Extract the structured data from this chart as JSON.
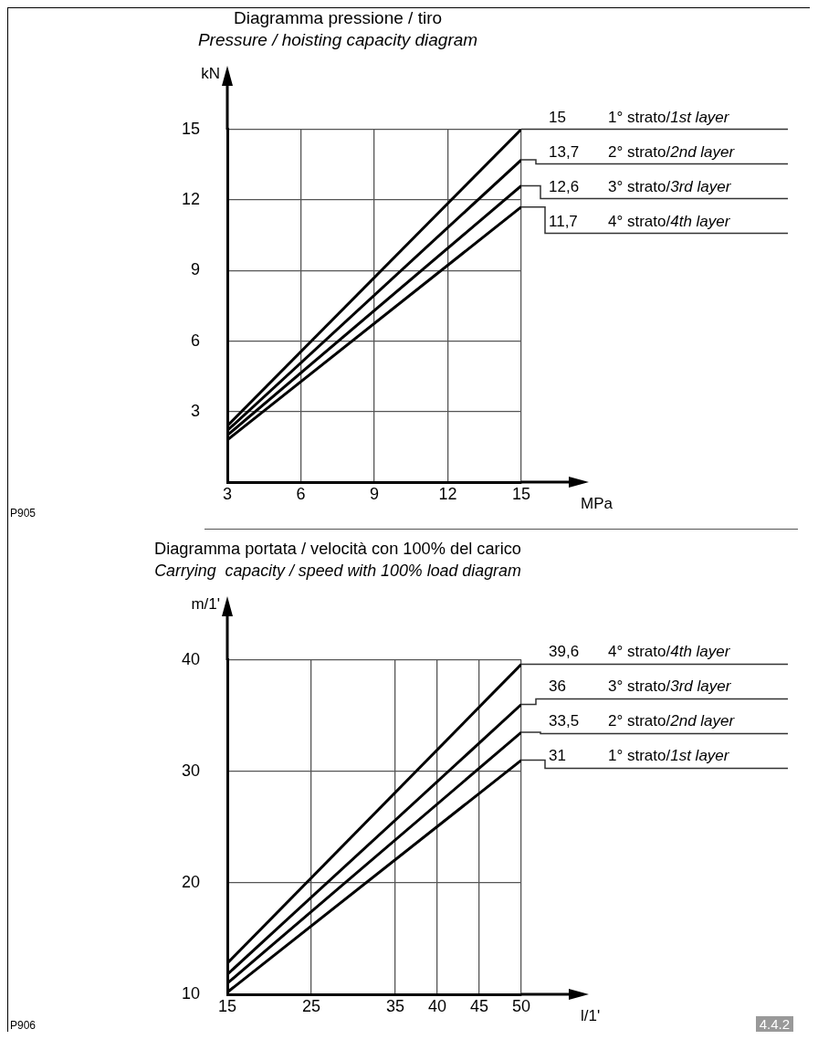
{
  "chart_data": [
    {
      "type": "line",
      "title": "Diagramma pressione / tiro",
      "subtitle": "Pressure / hoisting capacity diagram",
      "xlabel": "MPa",
      "ylabel": "kN",
      "x": [
        3,
        15
      ],
      "xlim": [
        3,
        15
      ],
      "ylim": [
        0,
        15
      ],
      "xticks": [
        3,
        6,
        9,
        12,
        15
      ],
      "yticks": [
        3,
        6,
        9,
        12,
        15
      ],
      "grid": true,
      "annotations": [
        "P905"
      ],
      "series": [
        {
          "name": "1° strato/1st layer",
          "color": "#000000",
          "values": [
            2.4,
            15
          ],
          "value_labels": [
            null,
            "15"
          ]
        },
        {
          "name": "2° strato/2nd layer",
          "color": "#000000",
          "values": [
            2.2,
            13.7
          ],
          "value_labels": [
            null,
            "13,7"
          ]
        },
        {
          "name": "3° strato/3rd layer",
          "color": "#000000",
          "values": [
            2.0,
            12.6
          ],
          "value_labels": [
            null,
            "12,6"
          ]
        },
        {
          "name": "4° strato/4th layer",
          "color": "#000000",
          "values": [
            1.8,
            11.7
          ],
          "value_labels": [
            null,
            "11,7"
          ]
        }
      ]
    },
    {
      "type": "line",
      "title": "Diagramma portata / velocità con 100% del carico",
      "subtitle": "Carrying  capacity / speed with 100% load diagram",
      "xlabel": "l/1'",
      "ylabel": "m/1'",
      "x": [
        15,
        50
      ],
      "xlim": [
        15,
        50
      ],
      "ylim": [
        10,
        40
      ],
      "xticks": [
        15,
        25,
        35,
        40,
        45,
        50
      ],
      "yticks": [
        10,
        20,
        30,
        40
      ],
      "grid": true,
      "annotations": [
        "P906",
        "4.4.2"
      ],
      "series": [
        {
          "name": "4° strato/4th layer",
          "color": "#000000",
          "values": [
            12.8,
            39.6
          ],
          "value_labels": [
            null,
            "39,6"
          ]
        },
        {
          "name": "3° strato/3rd layer",
          "color": "#000000",
          "values": [
            11.8,
            36
          ],
          "value_labels": [
            null,
            "36"
          ]
        },
        {
          "name": "2° strato/2nd layer",
          "color": "#000000",
          "values": [
            11.0,
            33.5
          ],
          "value_labels": [
            null,
            "33,5"
          ]
        },
        {
          "name": "1° strato/1st layer",
          "color": "#000000",
          "values": [
            10.2,
            31
          ],
          "value_labels": [
            null,
            "31"
          ]
        }
      ]
    }
  ]
}
